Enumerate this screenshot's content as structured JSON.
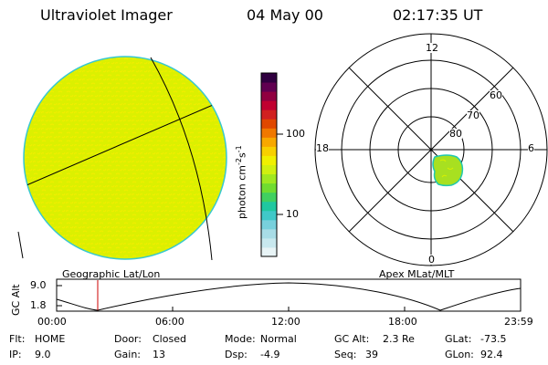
{
  "header": {
    "instrument": "Ultraviolet Imager",
    "date": "04 May 00",
    "time": "02:17:35 UT"
  },
  "left_panel": {
    "projection_label": "Geographic Lat/Lon"
  },
  "right_panel": {
    "projection_label": "Apex MLat/MLT",
    "mlt_labels": [
      "12",
      "18",
      "6",
      "0"
    ],
    "lat_labels": [
      "60",
      "70",
      "80"
    ]
  },
  "colorbar": {
    "unit_label": "photon cm",
    "unit_exp1": "-2",
    "unit_mid": "s",
    "unit_exp2": "-1",
    "tick_labels": [
      "100",
      "10"
    ],
    "colors": [
      "#e8f4f6",
      "#c8e8ee",
      "#a8dce6",
      "#78d0dc",
      "#40c8c8",
      "#20c8a0",
      "#40d060",
      "#70dc30",
      "#a0e820",
      "#d0f010",
      "#f0f000",
      "#f8d000",
      "#f8a800",
      "#f07800",
      "#e04800",
      "#d02020",
      "#c00030",
      "#900040",
      "#600050",
      "#300040"
    ]
  },
  "gc_alt_plot": {
    "ylabel": "GC Alt",
    "y_ticks": [
      "9.0",
      "1.8"
    ],
    "x_ticks": [
      "00:00",
      "06:00",
      "12:00",
      "18:00",
      "23:59"
    ],
    "marker_color": "#cc0000"
  },
  "status": {
    "row1": [
      {
        "label": "Flt:",
        "value": "HOME"
      },
      {
        "label": "Door:",
        "value": "Closed"
      },
      {
        "label": "Mode:",
        "value": "Normal"
      },
      {
        "label": "GC Alt:",
        "value": "2.3 Re"
      },
      {
        "label": "GLat:",
        "value": "-73.5"
      }
    ],
    "row2": [
      {
        "label": "IP:",
        "value": "9.0"
      },
      {
        "label": "Gain:",
        "value": "13"
      },
      {
        "label": "Dsp:",
        "value": "-4.9"
      },
      {
        "label": "Seq:",
        "value": "39"
      },
      {
        "label": "GLon:",
        "value": "92.4"
      }
    ]
  },
  "colors": {
    "disk_fill": "#dcf000",
    "disk_speckle": "#f2ee00",
    "disk_edge": "#38c8d0",
    "blob_fill": "#a8e020",
    "blob_edge": "#20c8b0"
  }
}
